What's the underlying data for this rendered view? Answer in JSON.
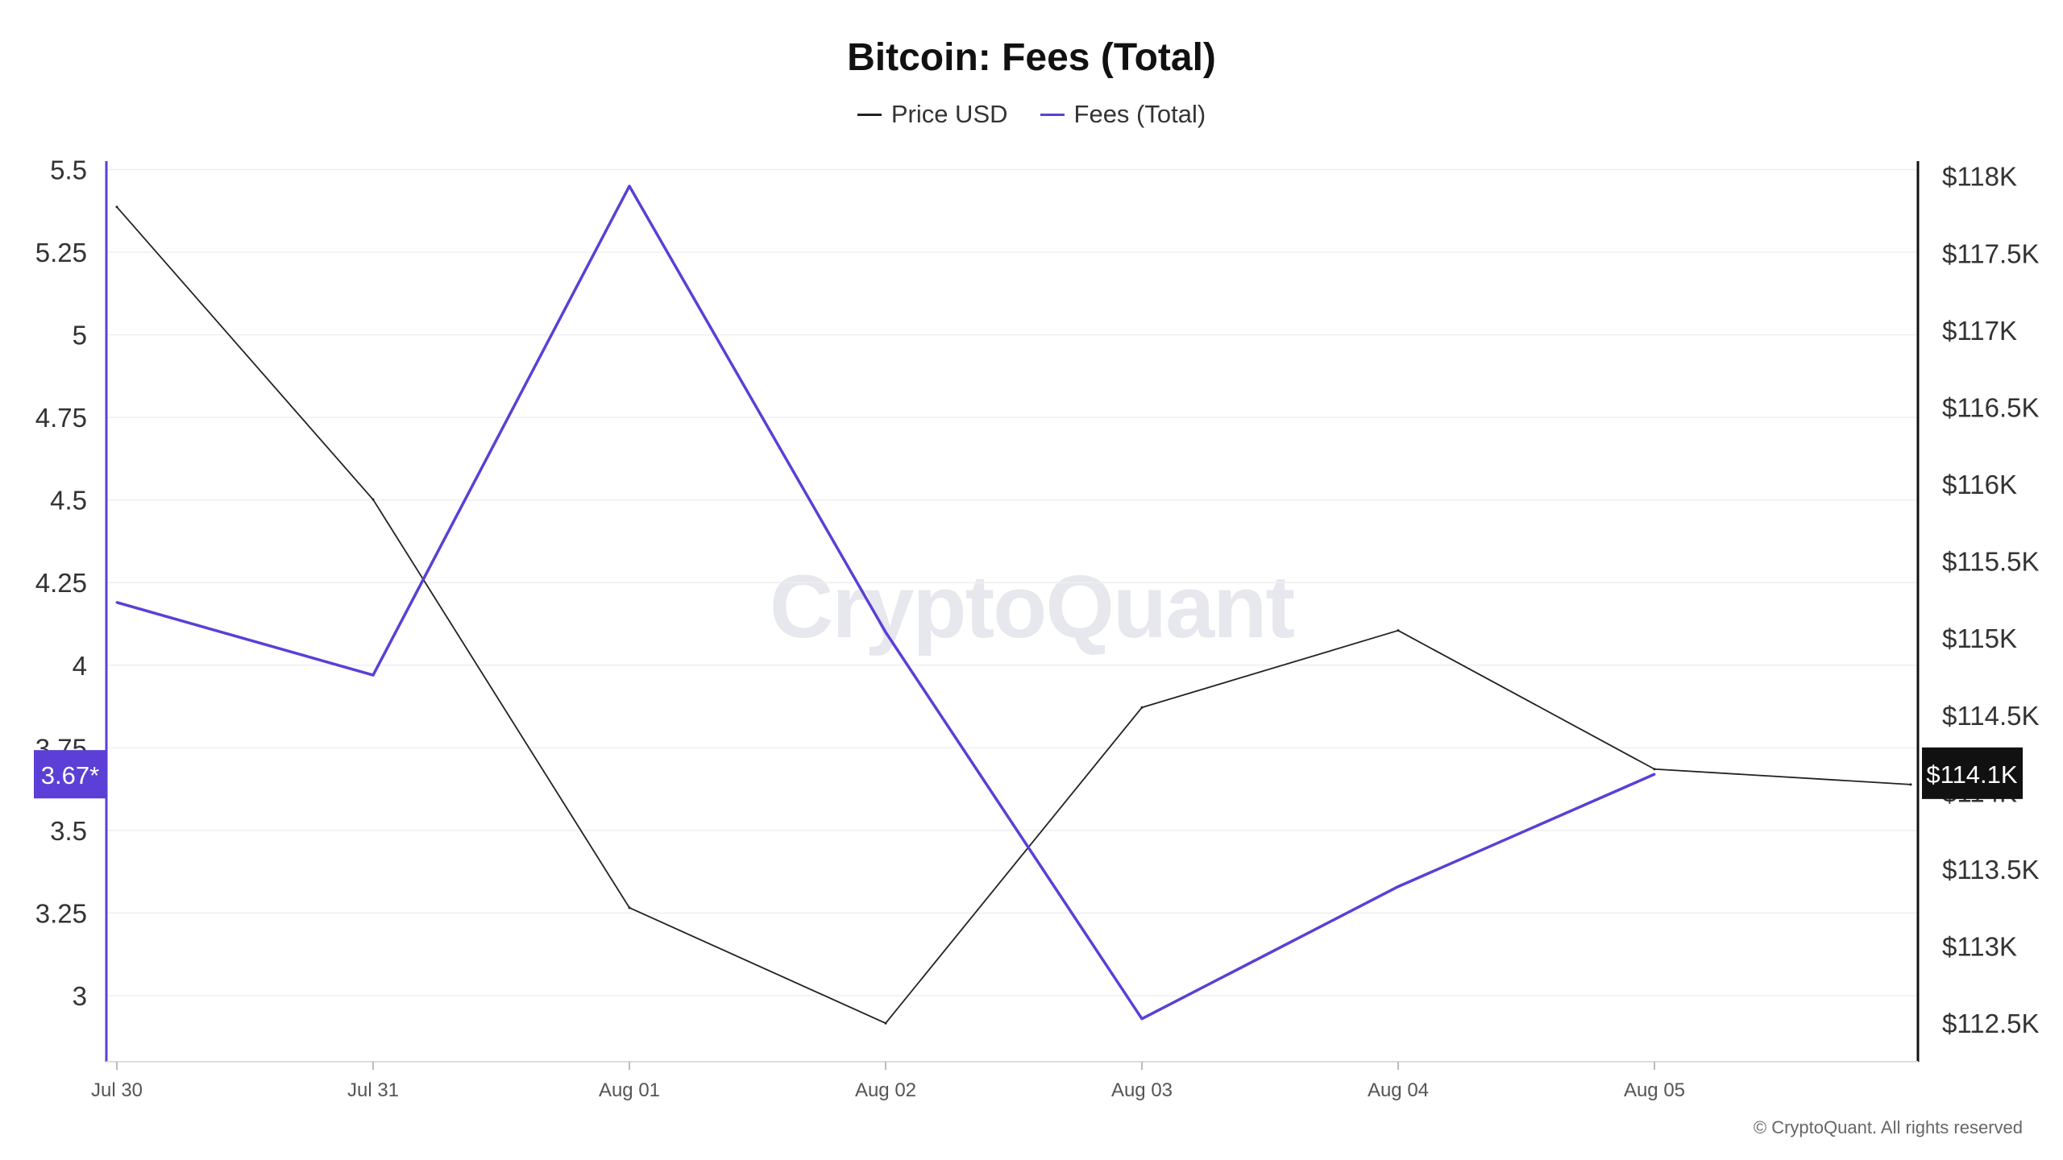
{
  "chart_data": {
    "type": "line",
    "title": "Bitcoin: Fees (Total)",
    "x": [
      "Jul 30",
      "Jul 31",
      "Aug 01",
      "Aug 02",
      "Aug 03",
      "Aug 04",
      "Aug 05",
      ""
    ],
    "x_ticks": [
      "Jul 30",
      "Jul 31",
      "Aug 01",
      "Aug 02",
      "Aug 03",
      "Aug 04",
      "Aug 05"
    ],
    "series": [
      {
        "name": "Price USD",
        "axis": "right",
        "color": "#222222",
        "values": [
          117800,
          115900,
          113250,
          112500,
          114550,
          115050,
          114150,
          114050
        ]
      },
      {
        "name": "Fees (Total)",
        "axis": "left",
        "color": "#5b3fd6",
        "values": [
          4.19,
          3.97,
          5.45,
          4.1,
          2.93,
          3.33,
          3.67,
          null
        ]
      }
    ],
    "y_left": {
      "min": 2.8,
      "max": 5.55,
      "ticks": [
        5.5,
        5.25,
        5,
        4.75,
        4.5,
        4.25,
        4,
        3.75,
        3.5,
        3.25,
        3
      ]
    },
    "y_right": {
      "min": 112250,
      "max": 118150,
      "ticks": [
        118000,
        117500,
        117000,
        116500,
        116000,
        115500,
        115000,
        114500,
        114000,
        113500,
        113000,
        112500
      ],
      "tick_labels": [
        "$118K",
        "$117.5K",
        "$117K",
        "$116.5K",
        "$116K",
        "$115.5K",
        "$115K",
        "$114.5K",
        "$114K",
        "$113.5K",
        "$113K",
        "$112.5K"
      ]
    },
    "current_labels": {
      "left": "3.67*",
      "right": "$114.1K"
    },
    "grid": true,
    "legend_position": "top-center"
  },
  "watermark": "CryptoQuant",
  "copyright": "© CryptoQuant. All rights reserved"
}
